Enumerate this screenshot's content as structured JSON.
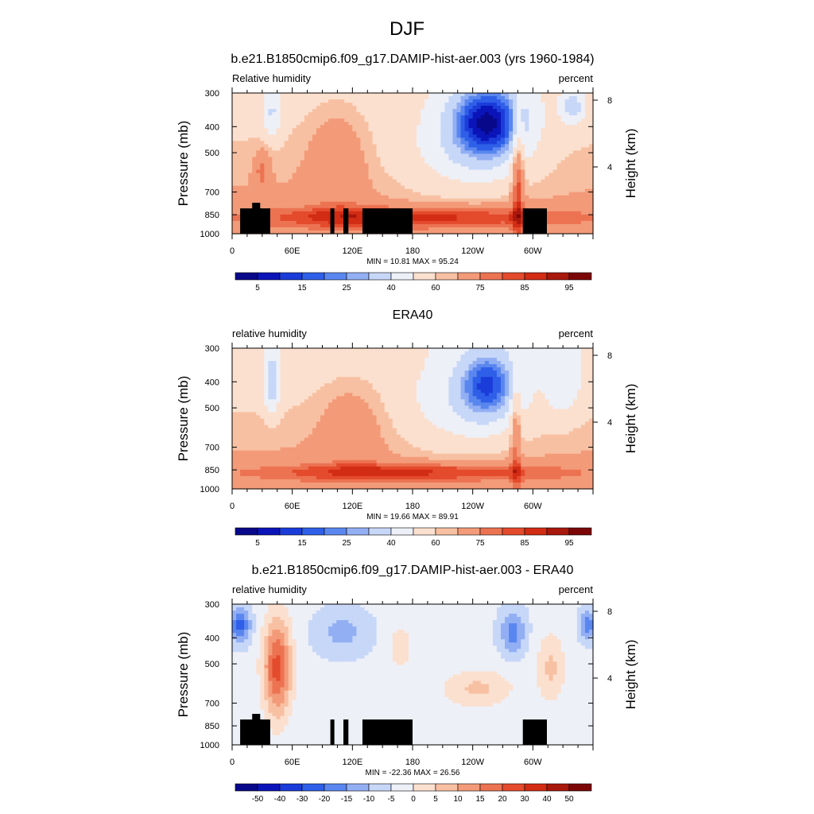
{
  "figure_title": "DJF",
  "colors": {
    "rh_scale": [
      "#08088a",
      "#0a14b8",
      "#1b3cd9",
      "#2f5fe8",
      "#5a86ef",
      "#93aff4",
      "#c7d7f8",
      "#eef0f8",
      "#fbe0cf",
      "#f8c0a2",
      "#f39a78",
      "#ec7352",
      "#e44a2c",
      "#d22c14",
      "#a8180c",
      "#7c0606"
    ],
    "diff_scale": [
      "#08088a",
      "#0a14b8",
      "#1b3cd9",
      "#2f5fe8",
      "#5a86ef",
      "#93aff4",
      "#c7d7f8",
      "#eef0f8",
      "#fbe0cf",
      "#f8c0a2",
      "#f39a78",
      "#ec7352",
      "#e44a2c",
      "#d22c14",
      "#a8180c",
      "#7c0606"
    ],
    "terrain": "#000000"
  },
  "panels": [
    {
      "title": "b.e21.B1850cmip6.f09_g17.DAMIP-hist-aer.003 (yrs 1960-1984)",
      "left_label": "Relative humidity",
      "right_label": "percent",
      "stats": "MIN =  10.81  MAX =  95.24",
      "colorbar_labels": [
        "5",
        "15",
        "25",
        "40",
        "60",
        "75",
        "85",
        "95"
      ]
    },
    {
      "title": "ERA40",
      "left_label": "relative humidity",
      "right_label": "percent",
      "stats": "MIN =  19.66  MAX =  89.91",
      "colorbar_labels": [
        "5",
        "15",
        "25",
        "40",
        "60",
        "75",
        "85",
        "95"
      ]
    },
    {
      "title": "b.e21.B1850cmip6.f09_g17.DAMIP-hist-aer.003 - ERA40",
      "left_label": "relative humidity",
      "right_label": "percent",
      "stats": "MIN = -22.36  MAX =  26.56",
      "colorbar_labels": [
        "-50",
        "-40",
        "-30",
        "-20",
        "-15",
        "-10",
        "-5",
        "0",
        "5",
        "10",
        "15",
        "20",
        "30",
        "40",
        "50"
      ]
    }
  ],
  "chart_data": [
    {
      "type": "heatmap",
      "title": "b.e21.B1850cmip6.f09_g17.DAMIP-hist-aer.003 (yrs 1960-1984)",
      "ylabel": "Pressure (mb)",
      "y2label": "Height (km)",
      "x_ticks": [
        "0",
        "60E",
        "120E",
        "180",
        "120W",
        "60W"
      ],
      "x_tick_values": [
        0,
        60,
        120,
        180,
        240,
        300
      ],
      "xlim": [
        0,
        360
      ],
      "y_ticks": [
        "300",
        "400",
        "500",
        "700",
        "850",
        "1000"
      ],
      "y_tick_values": [
        300,
        400,
        500,
        700,
        850,
        1000
      ],
      "ylim": [
        1000,
        300
      ],
      "y_scale": "log",
      "y2_ticks": [
        "8",
        "4"
      ],
      "y2_tick_values": [
        8,
        4
      ],
      "contour_levels": [
        5,
        10,
        15,
        20,
        25,
        30,
        40,
        50,
        60,
        65,
        75,
        80,
        85,
        90,
        95
      ],
      "colorbar_labels": [
        "5",
        "15",
        "25",
        "40",
        "60",
        "75",
        "85",
        "95"
      ],
      "min": 10.81,
      "max": 95.24,
      "units": "percent"
    },
    {
      "type": "heatmap",
      "title": "ERA40",
      "ylabel": "Pressure (mb)",
      "y2label": "Height (km)",
      "x_ticks": [
        "0",
        "60E",
        "120E",
        "180",
        "120W",
        "60W"
      ],
      "x_tick_values": [
        0,
        60,
        120,
        180,
        240,
        300
      ],
      "xlim": [
        0,
        360
      ],
      "y_ticks": [
        "300",
        "400",
        "500",
        "700",
        "850",
        "1000"
      ],
      "y_tick_values": [
        300,
        400,
        500,
        700,
        850,
        1000
      ],
      "ylim": [
        1000,
        300
      ],
      "y_scale": "log",
      "y2_ticks": [
        "8",
        "4"
      ],
      "y2_tick_values": [
        8,
        4
      ],
      "contour_levels": [
        5,
        10,
        15,
        20,
        25,
        30,
        40,
        50,
        60,
        65,
        75,
        80,
        85,
        90,
        95
      ],
      "colorbar_labels": [
        "5",
        "15",
        "25",
        "40",
        "60",
        "75",
        "85",
        "95"
      ],
      "min": 19.66,
      "max": 89.91,
      "units": "percent"
    },
    {
      "type": "heatmap",
      "title": "b.e21.B1850cmip6.f09_g17.DAMIP-hist-aer.003 - ERA40",
      "ylabel": "Pressure (mb)",
      "y2label": "Height (km)",
      "x_ticks": [
        "0",
        "60E",
        "120E",
        "180",
        "120W",
        "60W"
      ],
      "x_tick_values": [
        0,
        60,
        120,
        180,
        240,
        300
      ],
      "xlim": [
        0,
        360
      ],
      "y_ticks": [
        "300",
        "400",
        "500",
        "700",
        "850",
        "1000"
      ],
      "y_tick_values": [
        300,
        400,
        500,
        700,
        850,
        1000
      ],
      "ylim": [
        1000,
        300
      ],
      "y_scale": "log",
      "y2_ticks": [
        "8",
        "4"
      ],
      "y2_tick_values": [
        8,
        4
      ],
      "contour_levels": [
        -50,
        -40,
        -30,
        -20,
        -15,
        -10,
        -5,
        0,
        5,
        10,
        15,
        20,
        30,
        40,
        50
      ],
      "colorbar_labels": [
        "-50",
        "-40",
        "-30",
        "-20",
        "-15",
        "-10",
        "-5",
        "0",
        "5",
        "10",
        "15",
        "20",
        "30",
        "40",
        "50"
      ],
      "min": -22.36,
      "max": 26.56,
      "units": "percent"
    }
  ]
}
